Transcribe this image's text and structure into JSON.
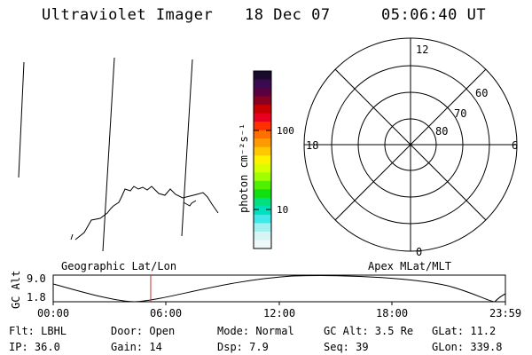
{
  "header": {
    "title": "Ultraviolet Imager",
    "date": "18 Dec 07",
    "time": "05:06:40 UT"
  },
  "colorbar": {
    "unit_label": "photon cm⁻²s⁻¹",
    "ticks": [
      "100",
      "10"
    ],
    "colors": [
      "#1a0a2e",
      "#3a0a4e",
      "#5a0040",
      "#8a0020",
      "#c80000",
      "#e80020",
      "#ff3000",
      "#ff7000",
      "#ff9a00",
      "#ffc800",
      "#fff200",
      "#d8ff00",
      "#a0ff00",
      "#50f000",
      "#10e010",
      "#00e080",
      "#00e0c0",
      "#40e8e8",
      "#a0f0f0",
      "#d8f4f4",
      "#eef8f8"
    ]
  },
  "polar_plot": {
    "mlt_labels": {
      "top": "12",
      "bottom": "0",
      "left": "18",
      "right": "6"
    },
    "lat_labels": [
      "60",
      "70",
      "80"
    ]
  },
  "orbit_panel": {
    "ylabel": "GC Alt",
    "y_ticks": [
      "9.0",
      "1.8"
    ],
    "left_title": "Geographic Lat/Lon",
    "right_title": "Apex MLat/MLT",
    "x_ticks": [
      "00:00",
      "06:00",
      "12:00",
      "18:00",
      "23:59"
    ],
    "marker_color": "#c03030"
  },
  "info": {
    "row1": [
      "Flt: LBHL",
      "Door: Open",
      "Mode: Normal",
      "GC Alt: 3.5 Re",
      "GLat:  11.2"
    ],
    "row2": [
      "IP: 36.0",
      "Gain: 14",
      "Dsp:    7.9",
      "Seq: 39",
      "GLon: 339.8"
    ]
  }
}
